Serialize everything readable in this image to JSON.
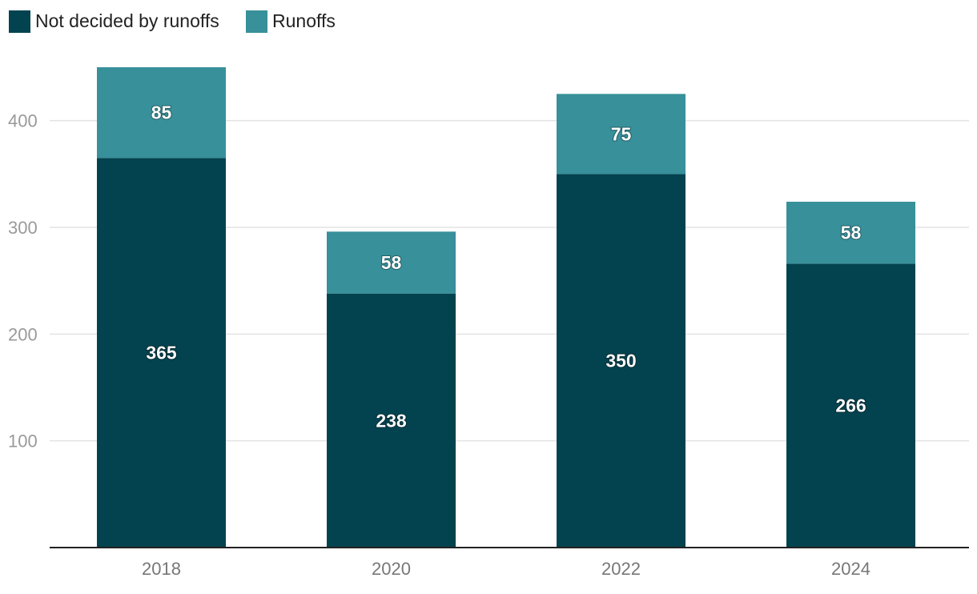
{
  "chart_data": {
    "type": "bar",
    "stacked": true,
    "categories": [
      "2018",
      "2020",
      "2022",
      "2024"
    ],
    "series": [
      {
        "name": "Not decided by runoffs",
        "color": "#02434f",
        "values": [
          365,
          238,
          350,
          266
        ]
      },
      {
        "name": "Runoffs",
        "color": "#37909a",
        "values": [
          85,
          58,
          75,
          58
        ]
      }
    ],
    "ylim": [
      0,
      450
    ],
    "yticks": [
      "100",
      "200",
      "300",
      "400"
    ],
    "grid": true,
    "legend_position": "top-left",
    "title": "",
    "xlabel": "",
    "ylabel": ""
  }
}
